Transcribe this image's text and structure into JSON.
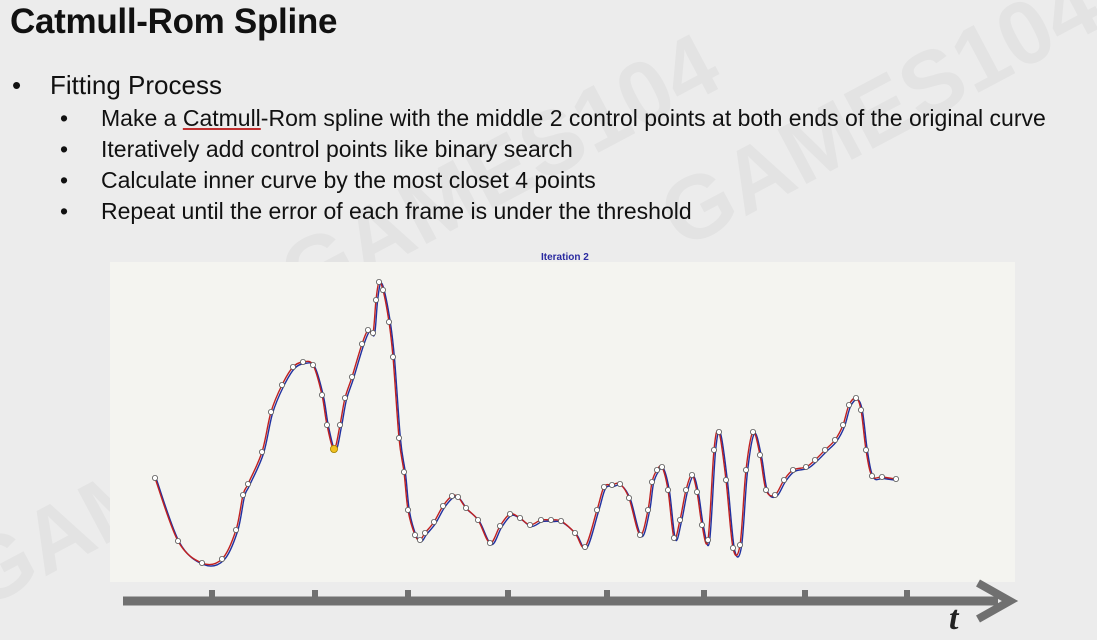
{
  "slide": {
    "title": "Catmull-Rom Spline",
    "bullet": "Fitting Process",
    "sub_bullets": {
      "b1_pre": "Make a ",
      "b1_link": "Catmull",
      "b1_post": "-Rom spline with the middle 2 control points at both ends of the original curve",
      "b2": "Iteratively add control points like binary search",
      "b3": "Calculate inner curve by the most closet 4 points",
      "b4": "Repeat until the error of each frame is under the threshold"
    },
    "bullet_symbol": "•"
  },
  "chart_data": {
    "type": "line",
    "title": "Iteration 2",
    "xlabel": "t",
    "ylabel": "",
    "grid": false,
    "series": [
      {
        "color": "#c02020"
      },
      {
        "color": "#2030a0"
      }
    ],
    "highlighted_point_color": "#f0c020",
    "axis_color": "#707070"
  },
  "watermark": {
    "text": "GAMES104"
  }
}
